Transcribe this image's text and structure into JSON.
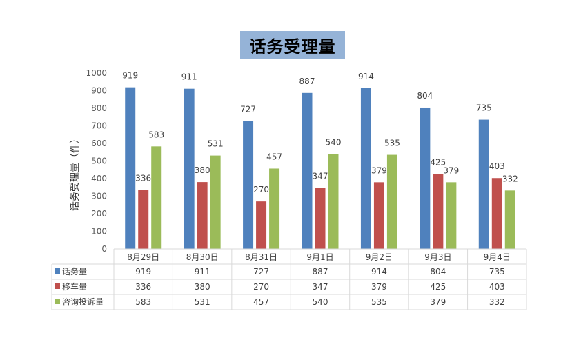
{
  "chart_data": {
    "type": "bar",
    "title": "话务受理量",
    "ylabel": "话务受理量（件）",
    "xlabel": "",
    "ylim": [
      0,
      1000
    ],
    "yticks": [
      "0",
      "100",
      "200",
      "300",
      "400",
      "500",
      "600",
      "700",
      "800",
      "900",
      "1000"
    ],
    "categories": [
      "8月29日",
      "8月30日",
      "8月31日",
      "9月1日",
      "9月2日",
      "9月3日",
      "9月4日"
    ],
    "series": [
      {
        "name": "话务量",
        "color": "#4f81bd",
        "values": [
          919,
          911,
          727,
          887,
          914,
          804,
          735
        ]
      },
      {
        "name": "移车量",
        "color": "#c0504d",
        "values": [
          336,
          380,
          270,
          347,
          379,
          425,
          403
        ]
      },
      {
        "name": "咨询投诉量",
        "color": "#9bbb59",
        "values": [
          583,
          531,
          457,
          540,
          535,
          379,
          332
        ]
      }
    ],
    "grid": false,
    "legend": "data-table-below"
  }
}
